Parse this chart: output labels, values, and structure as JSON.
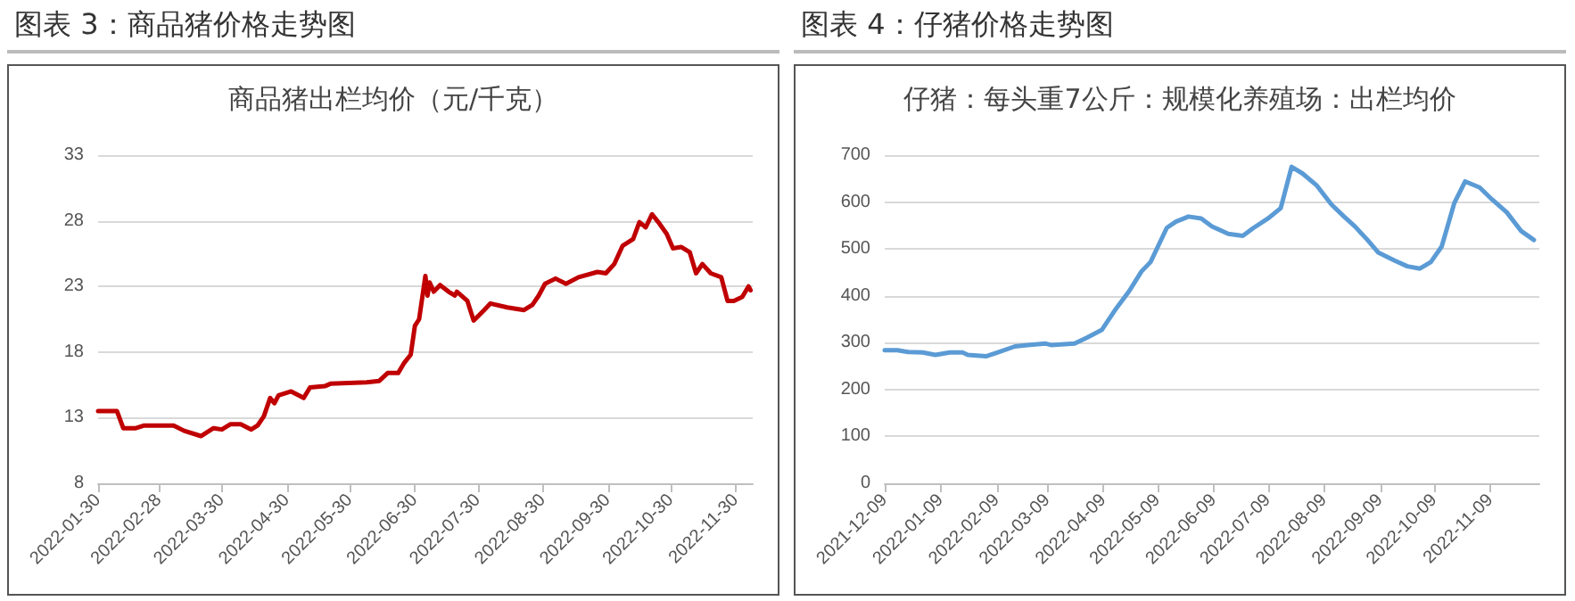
{
  "chart_data": [
    {
      "type": "line",
      "title": "图表 3：商品猪价格走势图",
      "subtitle": "商品猪出栏均价（元/千克）",
      "grid": "y",
      "marker": "none",
      "line_style": "solid",
      "xlim": [
        "2022-01-30",
        "2022-12-08"
      ],
      "xticks": [
        "2022-01-30",
        "2022-02-28",
        "2022-03-30",
        "2022-04-30",
        "2022-05-30",
        "2022-06-30",
        "2022-07-30",
        "2022-08-30",
        "2022-09-30",
        "2022-10-30",
        "2022-11-30"
      ],
      "ylim": [
        8,
        33
      ],
      "yticks": [
        8,
        13,
        18,
        23,
        28,
        33
      ],
      "series": [
        {
          "color": "#c00000",
          "x": [
            "2022-01-30",
            "2022-02-08",
            "2022-02-11",
            "2022-02-17",
            "2022-02-21",
            "2022-03-07",
            "2022-03-12",
            "2022-03-20",
            "2022-03-23",
            "2022-03-26",
            "2022-03-30",
            "2022-04-03",
            "2022-04-08",
            "2022-04-13",
            "2022-04-16",
            "2022-04-19",
            "2022-04-22",
            "2022-04-24",
            "2022-04-26",
            "2022-05-02",
            "2022-05-08",
            "2022-05-11",
            "2022-05-18",
            "2022-05-21",
            "2022-06-07",
            "2022-06-13",
            "2022-06-17",
            "2022-06-22",
            "2022-06-25",
            "2022-06-28",
            "2022-06-30",
            "2022-07-02",
            "2022-07-05",
            "2022-07-06",
            "2022-07-07",
            "2022-07-09",
            "2022-07-12",
            "2022-07-16",
            "2022-07-19",
            "2022-07-20",
            "2022-07-25",
            "2022-07-28",
            "2022-08-02",
            "2022-08-05",
            "2022-08-13",
            "2022-08-21",
            "2022-08-25",
            "2022-08-28",
            "2022-08-31",
            "2022-09-05",
            "2022-09-10",
            "2022-09-16",
            "2022-09-25",
            "2022-09-29",
            "2022-10-03",
            "2022-10-07",
            "2022-10-12",
            "2022-10-15",
            "2022-10-18",
            "2022-10-21",
            "2022-10-24",
            "2022-10-28",
            "2022-10-31",
            "2022-11-04",
            "2022-11-08",
            "2022-11-11",
            "2022-11-14",
            "2022-11-18",
            "2022-11-23",
            "2022-11-26",
            "2022-11-29",
            "2022-12-03",
            "2022-12-06",
            "2022-12-07"
          ],
          "values": [
            13.5,
            13.5,
            12.2,
            12.2,
            12.4,
            12.4,
            12.0,
            11.6,
            11.9,
            12.2,
            12.1,
            12.5,
            12.5,
            12.1,
            12.4,
            13.1,
            14.5,
            14.1,
            14.7,
            15.0,
            14.5,
            15.3,
            15.4,
            15.6,
            15.7,
            15.8,
            16.4,
            16.4,
            17.2,
            17.8,
            20.0,
            20.5,
            23.8,
            22.3,
            23.3,
            22.6,
            23.1,
            22.6,
            22.3,
            22.6,
            21.9,
            20.4,
            21.2,
            21.7,
            21.4,
            21.2,
            21.6,
            22.3,
            23.2,
            23.6,
            23.2,
            23.7,
            24.1,
            24.0,
            24.7,
            26.1,
            26.6,
            27.9,
            27.5,
            28.5,
            27.9,
            27.0,
            25.9,
            26.0,
            25.6,
            24.0,
            24.7,
            24.0,
            23.7,
            21.9,
            21.9,
            22.2,
            23.0,
            22.7
          ]
        }
      ]
    },
    {
      "type": "line",
      "title": "图表 4：仔猪价格走势图",
      "subtitle": "仔猪：每头重7公斤：规模化养殖场：出栏均价",
      "grid": "y",
      "marker": "none",
      "line_style": "solid",
      "xlim": [
        "2021-12-09",
        "2022-12-06"
      ],
      "xticks": [
        "2021-12-09",
        "2022-01-09",
        "2022-02-09",
        "2022-03-09",
        "2022-04-09",
        "2022-05-09",
        "2022-06-09",
        "2022-07-09",
        "2022-08-09",
        "2022-09-09",
        "2022-10-09",
        "2022-11-09"
      ],
      "ylim": [
        0,
        700
      ],
      "yticks": [
        0,
        100,
        200,
        300,
        400,
        500,
        600,
        700
      ],
      "series": [
        {
          "color": "#5b9bd5",
          "x": [
            "2021-12-09",
            "2021-12-16",
            "2021-12-22",
            "2021-12-30",
            "2022-01-06",
            "2022-01-14",
            "2022-01-21",
            "2022-01-24",
            "2022-02-03",
            "2022-02-10",
            "2022-02-19",
            "2022-02-26",
            "2022-03-08",
            "2022-03-11",
            "2022-03-24",
            "2022-03-31",
            "2022-04-08",
            "2022-04-16",
            "2022-04-23",
            "2022-04-30",
            "2022-05-05",
            "2022-05-14",
            "2022-05-19",
            "2022-05-26",
            "2022-06-02",
            "2022-06-08",
            "2022-06-17",
            "2022-06-25",
            "2022-07-01",
            "2022-07-09",
            "2022-07-16",
            "2022-07-22",
            "2022-07-28",
            "2022-08-05",
            "2022-08-13",
            "2022-08-20",
            "2022-08-26",
            "2022-09-02",
            "2022-09-08",
            "2022-09-17",
            "2022-09-24",
            "2022-10-01",
            "2022-10-07",
            "2022-10-13",
            "2022-10-20",
            "2022-10-26",
            "2022-11-03",
            "2022-11-10",
            "2022-11-18",
            "2022-11-26",
            "2022-12-03"
          ],
          "values": [
            284,
            284,
            280,
            279,
            274,
            279,
            279,
            274,
            271,
            280,
            292,
            295,
            298,
            295,
            298,
            311,
            327,
            373,
            409,
            452,
            472,
            545,
            558,
            569,
            565,
            548,
            532,
            528,
            545,
            565,
            587,
            675,
            661,
            635,
            595,
            569,
            548,
            519,
            492,
            475,
            463,
            458,
            472,
            505,
            598,
            644,
            631,
            605,
            578,
            538,
            519
          ]
        }
      ]
    }
  ]
}
